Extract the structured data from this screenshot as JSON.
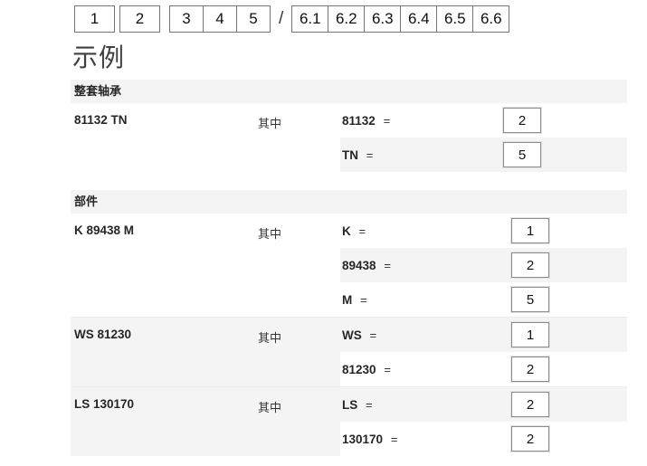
{
  "top_designation_row": {
    "box1": "1",
    "box2": "2",
    "group_a": [
      "3",
      "4",
      "5"
    ],
    "separator": "/",
    "group_b": [
      "6.1",
      "6.2",
      "6.3",
      "6.4",
      "6.5",
      "6.6"
    ]
  },
  "heading": "示例",
  "sections": [
    {
      "header": "整套轴承",
      "groups": [
        {
          "designation": "81132 TN",
          "where_label": "其中",
          "rows": [
            {
              "code": "81132",
              "value": "2"
            },
            {
              "code": "TN",
              "value": "5"
            }
          ]
        }
      ]
    },
    {
      "header": "部件",
      "groups": [
        {
          "designation": "K 89438 M",
          "where_label": "其中",
          "rows": [
            {
              "code": "K",
              "value": "1"
            },
            {
              "code": "89438",
              "value": "2"
            },
            {
              "code": "M",
              "value": "5"
            }
          ]
        },
        {
          "designation": "WS 81230",
          "where_label": "其中",
          "rows": [
            {
              "code": "WS",
              "value": "1"
            },
            {
              "code": "81230",
              "value": "2"
            }
          ]
        },
        {
          "designation": "LS 130170",
          "where_label": "其中",
          "rows": [
            {
              "code": "LS",
              "value": "2"
            },
            {
              "code": "130170",
              "value": "2"
            }
          ]
        }
      ]
    }
  ],
  "misc": {
    "equals_sign": "="
  },
  "colors": {
    "stripe": "#f4f4f4",
    "box_border": "#8c8c8c",
    "bar_border": "#757575",
    "text": "#262626",
    "heading_text": "#3f3f3f"
  }
}
